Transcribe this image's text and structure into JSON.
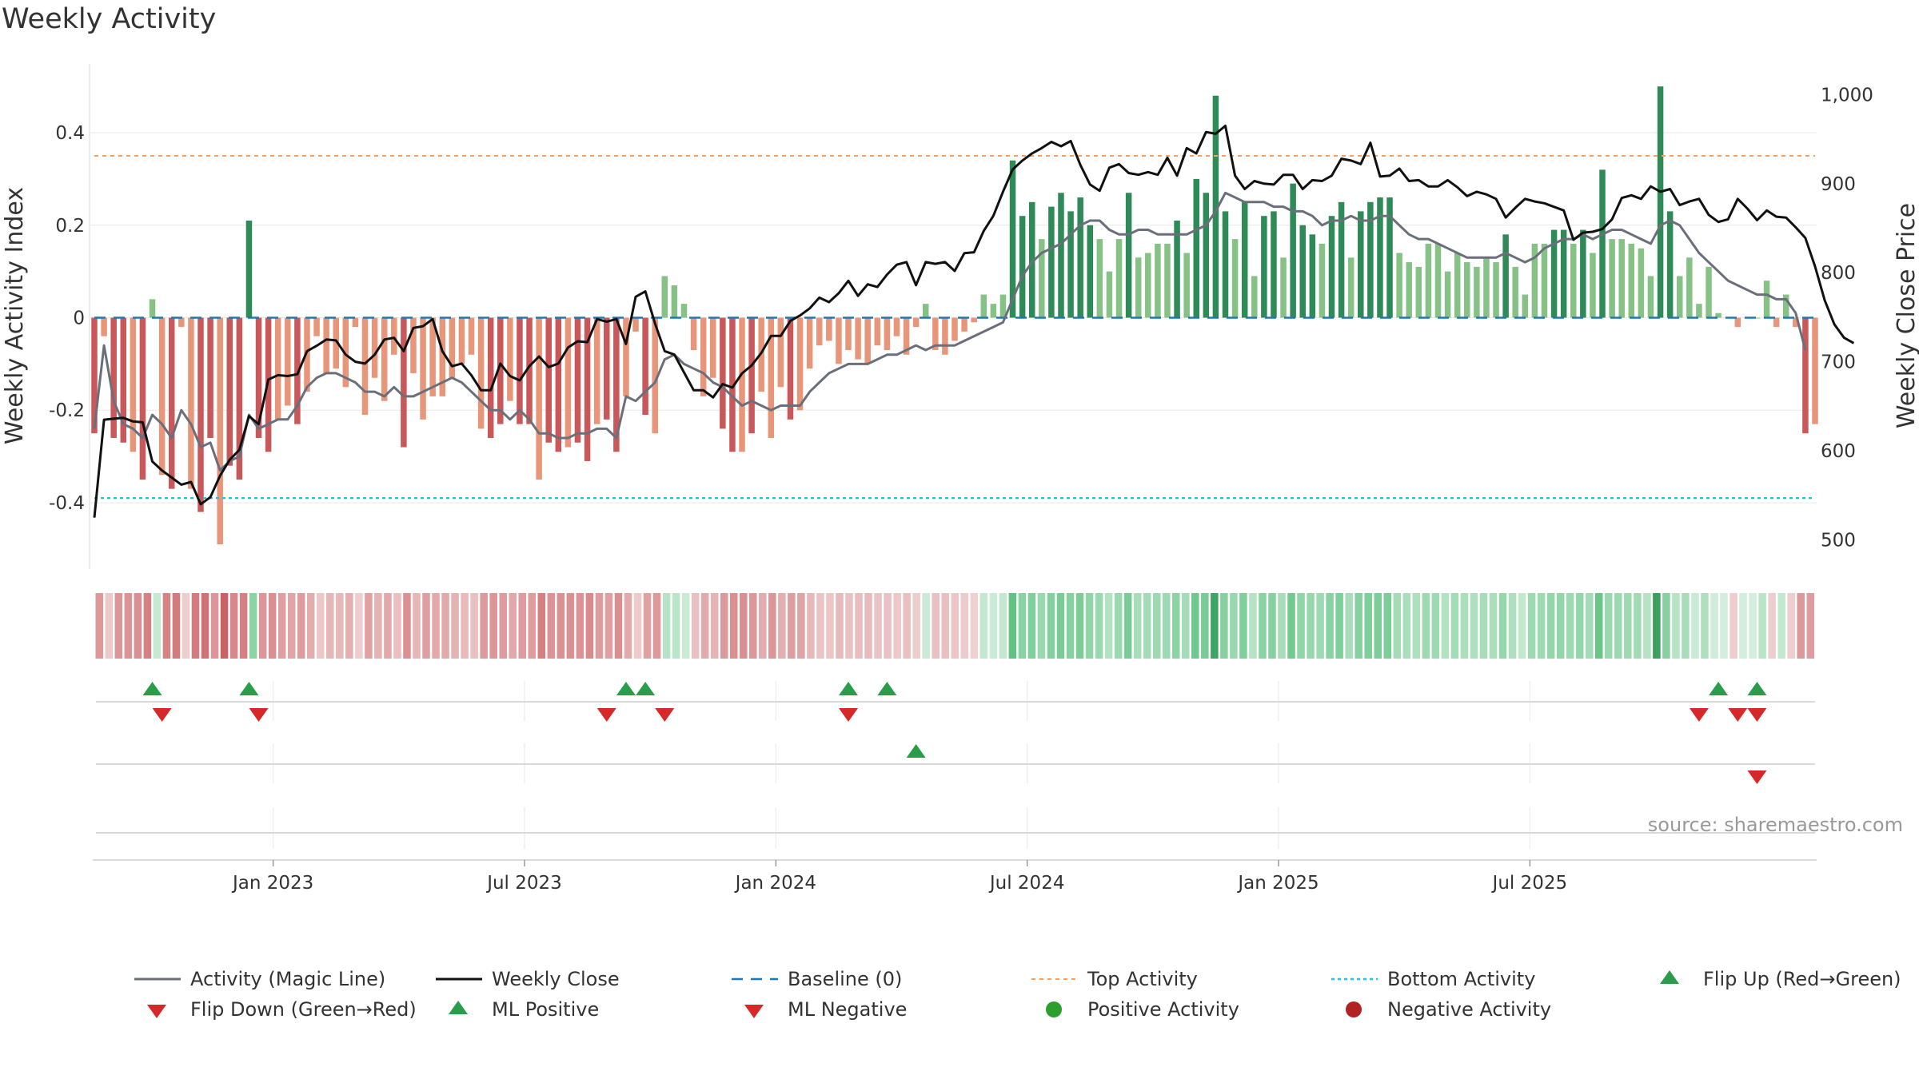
{
  "chart_data": {
    "type": "bar",
    "title": "Weekly Activity",
    "ylabel_left": "Weekly Activity Index",
    "ylabel_right": "Weekly Close Price",
    "left_ylim": [
      -0.54,
      0.54
    ],
    "left_ticks": [
      {
        "v": 0.4,
        "label": "0.4"
      },
      {
        "v": 0.2,
        "label": "0.2"
      },
      {
        "v": 0,
        "label": "0"
      },
      {
        "v": -0.2,
        "label": "-0.2"
      },
      {
        "v": -0.4,
        "label": "-0.4"
      }
    ],
    "right_ylim": [
      469,
      1030
    ],
    "right_ticks": [
      {
        "v": 1000,
        "label": "1,000"
      },
      {
        "v": 900,
        "label": "900"
      },
      {
        "v": 800,
        "label": "800"
      },
      {
        "v": 700,
        "label": "700"
      },
      {
        "v": 600,
        "label": "600"
      },
      {
        "v": 500,
        "label": "500"
      }
    ],
    "x_ticks": [
      "Jan 2023",
      "Jul 2023",
      "Jan 2024",
      "Jul 2024",
      "Jan 2025",
      "Jul 2025"
    ],
    "top_activity": 0.35,
    "bottom_activity": -0.39,
    "activity": [
      -0.25,
      -0.04,
      -0.26,
      -0.27,
      -0.29,
      -0.35,
      0.04,
      -0.34,
      -0.37,
      -0.02,
      -0.37,
      -0.42,
      -0.26,
      -0.49,
      -0.32,
      -0.35,
      0.21,
      -0.26,
      -0.29,
      -0.22,
      -0.19,
      -0.23,
      -0.16,
      -0.04,
      -0.12,
      -0.11,
      -0.15,
      -0.02,
      -0.21,
      -0.13,
      -0.18,
      -0.08,
      -0.28,
      -0.12,
      -0.22,
      -0.17,
      -0.17,
      -0.13,
      -0.1,
      -0.08,
      -0.24,
      -0.26,
      -0.23,
      -0.18,
      -0.23,
      -0.23,
      -0.35,
      -0.27,
      -0.29,
      -0.28,
      -0.27,
      -0.31,
      -0.23,
      -0.22,
      -0.29,
      -0.17,
      -0.03,
      -0.21,
      -0.25,
      0.09,
      0.07,
      0.03,
      -0.07,
      -0.17,
      -0.13,
      -0.24,
      -0.29,
      -0.29,
      -0.25,
      -0.16,
      -0.26,
      -0.15,
      -0.22,
      -0.2,
      -0.11,
      -0.06,
      -0.05,
      -0.1,
      -0.07,
      -0.09,
      -0.1,
      -0.06,
      -0.07,
      -0.04,
      -0.08,
      -0.02,
      0.03,
      -0.07,
      -0.08,
      -0.05,
      -0.03,
      -0.01,
      0.05,
      0.03,
      0.05,
      0.34,
      0.22,
      0.25,
      0.17,
      0.24,
      0.27,
      0.23,
      0.26,
      0.2,
      0.17,
      0.1,
      0.17,
      0.27,
      0.13,
      0.14,
      0.16,
      0.16,
      0.21,
      0.14,
      0.3,
      0.27,
      0.48,
      0.23,
      0.17,
      0.25,
      0.09,
      0.22,
      0.23,
      0.13,
      0.29,
      0.2,
      0.18,
      0.16,
      0.22,
      0.25,
      0.13,
      0.23,
      0.25,
      0.26,
      0.26,
      0.14,
      0.12,
      0.11,
      0.16,
      0.16,
      0.1,
      0.14,
      0.12,
      0.11,
      0.13,
      0.12,
      0.18,
      0.11,
      0.05,
      0.16,
      0.16,
      0.19,
      0.19,
      0.16,
      0.19,
      0.14,
      0.32,
      0.17,
      0.17,
      0.16,
      0.15,
      0.09,
      0.5,
      0.23,
      0.09,
      0.13,
      0.03,
      0.11,
      0.01,
      0.0,
      -0.02,
      0.0,
      0.0,
      0.08,
      -0.02,
      0.05,
      -0.02,
      -0.25,
      -0.23
    ],
    "magic_line": [
      -0.24,
      -0.06,
      -0.18,
      -0.23,
      -0.24,
      -0.26,
      -0.21,
      -0.23,
      -0.26,
      -0.2,
      -0.23,
      -0.28,
      -0.27,
      -0.33,
      -0.31,
      -0.3,
      -0.21,
      -0.24,
      -0.23,
      -0.22,
      -0.22,
      -0.19,
      -0.15,
      -0.13,
      -0.12,
      -0.12,
      -0.13,
      -0.14,
      -0.16,
      -0.16,
      -0.17,
      -0.15,
      -0.17,
      -0.17,
      -0.16,
      -0.15,
      -0.14,
      -0.13,
      -0.14,
      -0.16,
      -0.18,
      -0.2,
      -0.2,
      -0.22,
      -0.2,
      -0.22,
      -0.25,
      -0.25,
      -0.26,
      -0.26,
      -0.25,
      -0.25,
      -0.24,
      -0.24,
      -0.26,
      -0.17,
      -0.18,
      -0.16,
      -0.14,
      -0.09,
      -0.08,
      -0.1,
      -0.11,
      -0.12,
      -0.14,
      -0.15,
      -0.17,
      -0.19,
      -0.18,
      -0.19,
      -0.2,
      -0.19,
      -0.19,
      -0.19,
      -0.16,
      -0.14,
      -0.12,
      -0.11,
      -0.1,
      -0.1,
      -0.1,
      -0.09,
      -0.08,
      -0.08,
      -0.07,
      -0.06,
      -0.07,
      -0.06,
      -0.06,
      -0.06,
      -0.05,
      -0.04,
      -0.03,
      -0.02,
      -0.01,
      0.04,
      0.09,
      0.12,
      0.14,
      0.15,
      0.16,
      0.18,
      0.2,
      0.21,
      0.21,
      0.19,
      0.18,
      0.18,
      0.19,
      0.19,
      0.18,
      0.18,
      0.18,
      0.18,
      0.19,
      0.2,
      0.23,
      0.27,
      0.26,
      0.25,
      0.25,
      0.25,
      0.24,
      0.24,
      0.23,
      0.23,
      0.22,
      0.2,
      0.21,
      0.21,
      0.22,
      0.21,
      0.21,
      0.22,
      0.22,
      0.2,
      0.18,
      0.17,
      0.17,
      0.16,
      0.15,
      0.14,
      0.13,
      0.13,
      0.13,
      0.13,
      0.14,
      0.13,
      0.12,
      0.13,
      0.15,
      0.16,
      0.17,
      0.17,
      0.18,
      0.17,
      0.18,
      0.19,
      0.19,
      0.18,
      0.17,
      0.16,
      0.2,
      0.21,
      0.2,
      0.17,
      0.14,
      0.12,
      0.1,
      0.08,
      0.07,
      0.06,
      0.05,
      0.05,
      0.04,
      0.04,
      0.01,
      -0.07
    ],
    "weekly_close": [
      525,
      635,
      636,
      637,
      633,
      632,
      588,
      578,
      570,
      562,
      565,
      540,
      548,
      572,
      590,
      601,
      639,
      630,
      680,
      685,
      684,
      686,
      712,
      718,
      725,
      724,
      708,
      700,
      698,
      708,
      725,
      727,
      712,
      738,
      740,
      748,
      712,
      695,
      698,
      685,
      668,
      668,
      698,
      684,
      679,
      695,
      706,
      694,
      698,
      716,
      723,
      722,
      748,
      745,
      748,
      720,
      773,
      779,
      743,
      712,
      708,
      688,
      668,
      668,
      660,
      675,
      671,
      687,
      696,
      710,
      729,
      729,
      746,
      752,
      760,
      772,
      767,
      777,
      791,
      774,
      787,
      784,
      798,
      809,
      812,
      786,
      812,
      810,
      812,
      802,
      822,
      823,
      847,
      864,
      891,
      916,
      926,
      934,
      940,
      947,
      942,
      948,
      921,
      899,
      892,
      918,
      922,
      912,
      910,
      913,
      910,
      929,
      909,
      940,
      934,
      958,
      956,
      965,
      909,
      894,
      903,
      900,
      899,
      910,
      910,
      894,
      904,
      903,
      909,
      928,
      926,
      922,
      946,
      908,
      909,
      917,
      903,
      904,
      897,
      897,
      904,
      896,
      886,
      891,
      888,
      883,
      862,
      873,
      883,
      880,
      878,
      874,
      870,
      837,
      845,
      846,
      849,
      860,
      884,
      887,
      883,
      897,
      891,
      894,
      876,
      880,
      883,
      865,
      857,
      860,
      883,
      872,
      859,
      870,
      863,
      862,
      851,
      839,
      807,
      769,
      742,
      727,
      721
    ],
    "flip_up_idx": [
      6,
      16,
      55,
      57,
      78,
      82,
      168,
      172
    ],
    "flip_down_idx": [
      7,
      17,
      53,
      59,
      78,
      166,
      170,
      172
    ],
    "ml_positive_idx": [
      85
    ],
    "ml_negative_idx": [
      172
    ],
    "colors": {
      "pos_strong": "#2e8b57",
      "pos_light": "#86c286",
      "neg_strong": "#c9585a",
      "neg_light": "#e8967a",
      "magic_line": "#6b6f7a",
      "close_line": "#111111",
      "baseline": "#1f77b4",
      "top_activity": "#f4a261",
      "bottom_activity": "#22c3e6",
      "marker_up": "#2a9d4a",
      "marker_down": "#d62828",
      "positive_dot": "#2ca02c",
      "negative_dot": "#b22222"
    },
    "legend": [
      {
        "label": "Activity (Magic Line)",
        "kind": "line",
        "style": "magic"
      },
      {
        "label": "Weekly Close",
        "kind": "line",
        "style": "close"
      },
      {
        "label": "Baseline (0)",
        "kind": "line",
        "style": "baseline"
      },
      {
        "label": "Top Activity",
        "kind": "line",
        "style": "top"
      },
      {
        "label": "Bottom Activity",
        "kind": "line",
        "style": "bottom"
      },
      {
        "label": "Flip Up (Red→Green)",
        "kind": "marker",
        "style": "up"
      },
      {
        "label": "Flip Down (Green→Red)",
        "kind": "marker",
        "style": "down"
      },
      {
        "label": "ML Positive",
        "kind": "marker",
        "style": "up"
      },
      {
        "label": "ML Negative",
        "kind": "marker",
        "style": "down"
      },
      {
        "label": "Positive Activity",
        "kind": "dot",
        "style": "pos"
      },
      {
        "label": "Negative Activity",
        "kind": "dot",
        "style": "neg"
      }
    ],
    "source": "source: sharemaestro.com"
  }
}
